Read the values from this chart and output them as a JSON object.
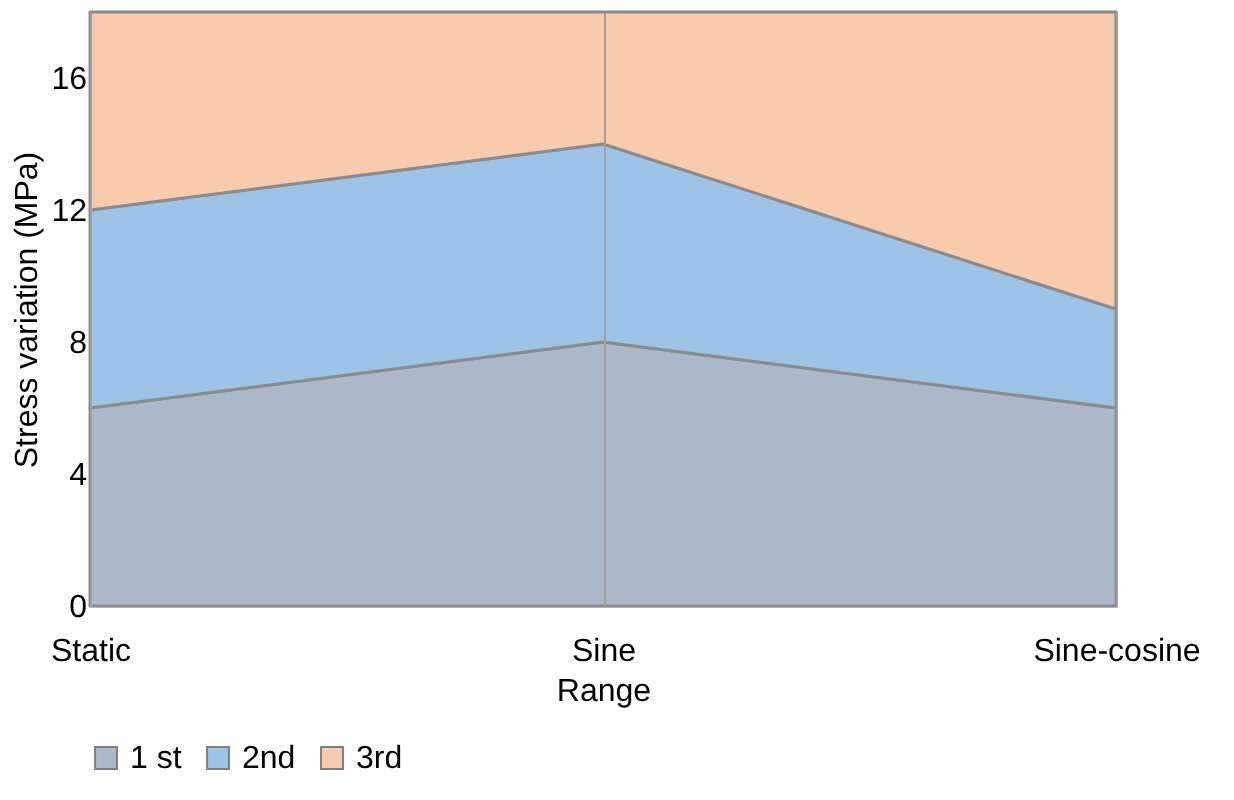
{
  "chart_data": {
    "type": "area",
    "stacked": true,
    "xlabel": "Range",
    "ylabel": "Stress variation (MPa)",
    "categories": [
      "Static",
      "Sine",
      "Sine-cosine"
    ],
    "series": [
      {
        "name": "1 st",
        "color": "#adb9ca",
        "values": [
          6,
          8,
          6
        ]
      },
      {
        "name": "2nd",
        "color": "#9dc3e6",
        "values": [
          6,
          6,
          3
        ]
      },
      {
        "name": "3rd",
        "color": "#f8cbad",
        "values": [
          6,
          4,
          9
        ]
      }
    ],
    "ylim": [
      0,
      18
    ],
    "yticks": [
      0,
      4,
      8,
      12,
      16
    ],
    "grid": "x",
    "legend": "bottom"
  }
}
